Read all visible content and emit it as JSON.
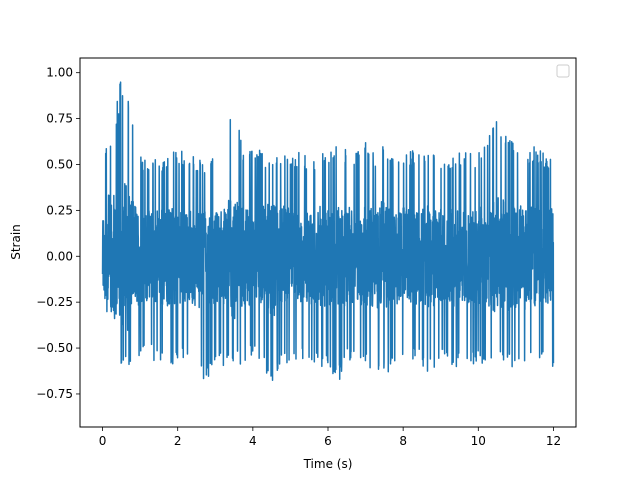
{
  "chart_data": {
    "type": "line",
    "title": "",
    "xlabel": "Time (s)",
    "ylabel": "Strain",
    "xlim": [
      -0.6,
      12.6
    ],
    "ylim": [
      -0.93,
      1.08
    ],
    "x_ticks": [
      0,
      2,
      4,
      6,
      8,
      10,
      12
    ],
    "x_tick_labels": [
      "0",
      "2",
      "4",
      "6",
      "8",
      "10",
      "12"
    ],
    "y_ticks": [
      -0.75,
      -0.5,
      -0.25,
      0.0,
      0.25,
      0.5,
      0.75,
      1.0
    ],
    "y_tick_labels": [
      "−0.75",
      "−0.50",
      "−0.25",
      "0.00",
      "0.25",
      "0.50",
      "0.75",
      "1.00"
    ],
    "grid": false,
    "legend": {
      "placement": "top-right",
      "entries": []
    },
    "series": [
      {
        "color": "#1f77b4",
        "x_range": [
          0,
          12
        ],
        "envelope_upper": [
          0.62,
          0.64,
          1.0,
          0.86,
          0.55,
          0.55,
          0.52,
          0.58,
          0.6,
          0.55,
          0.54,
          0.52,
          0.59,
          0.58,
          0.88,
          0.58,
          0.62,
          0.57,
          0.52,
          0.58,
          0.56,
          0.57,
          0.55,
          0.53,
          0.6,
          0.61,
          0.6,
          0.58,
          0.62,
          0.56,
          0.64,
          0.55,
          0.57,
          0.58,
          0.55,
          0.56,
          0.55,
          0.55,
          0.58,
          0.56,
          0.57,
          0.64,
          0.76,
          0.68,
          0.62,
          0.57,
          0.6,
          0.56,
          0.52
        ],
        "envelope_lower": [
          -0.55,
          -0.85,
          -0.65,
          -0.6,
          -0.58,
          -0.55,
          -0.6,
          -0.62,
          -0.58,
          -0.55,
          -0.62,
          -0.7,
          -0.58,
          -0.6,
          -0.58,
          -0.62,
          -0.55,
          -0.6,
          -0.76,
          -0.62,
          -0.58,
          -0.55,
          -0.58,
          -0.6,
          -0.62,
          -0.7,
          -0.58,
          -0.55,
          -0.6,
          -0.62,
          -0.68,
          -0.58,
          -0.62,
          -0.58,
          -0.6,
          -0.65,
          -0.58,
          -0.6,
          -0.62,
          -0.58,
          -0.6,
          -0.58,
          -0.55,
          -0.62,
          -0.6,
          -0.66,
          -0.58,
          -0.55,
          -0.66
        ]
      }
    ]
  }
}
